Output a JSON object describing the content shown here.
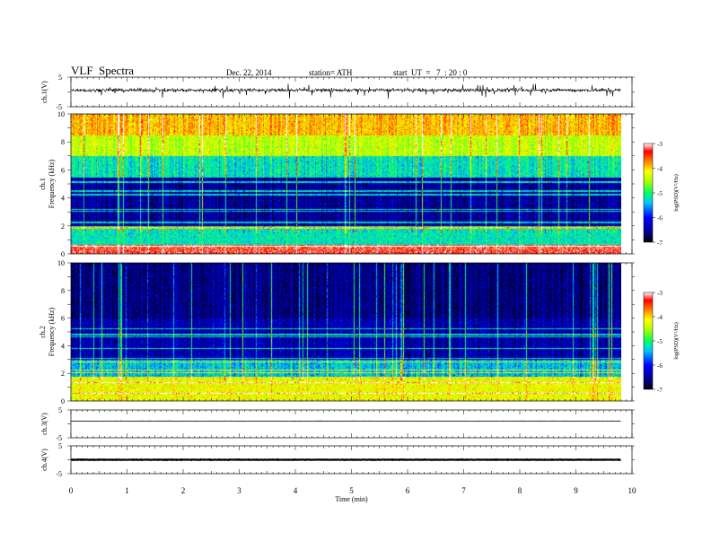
{
  "header": {
    "title": "VLF  Spectra",
    "date": "Dec. 22, 2014",
    "station": "station= ATH",
    "start": "start  UT  =   7  : 20 : 0"
  },
  "chart_data": [
    {
      "type": "line",
      "panel": "ch1-waveform",
      "ylabel": "ch.1(V)",
      "xlim": [
        0,
        10
      ],
      "ylim": [
        -5,
        5
      ],
      "y_ticks": [
        "5",
        "-5"
      ],
      "series": [
        {
          "mean": 0.6,
          "noise_amplitude": 1.0,
          "spike_amplitude": 2.5
        }
      ]
    },
    {
      "type": "heatmap",
      "panel": "ch1-spectrogram",
      "ylabel": "Frequency  (kHz)",
      "channel_label": "ch.1",
      "xlim": [
        0,
        9.8
      ],
      "ylim": [
        0,
        10
      ],
      "y_ticks": [
        "0",
        "2",
        "4",
        "6",
        "8",
        "10"
      ],
      "colorbar": {
        "label": "log(PSD)(V²/Hz)",
        "range": [
          -7,
          -3
        ],
        "ticks": [
          "-3",
          "-4",
          "-5",
          "-6",
          "-7"
        ]
      },
      "bands": [
        {
          "f_min": 0.0,
          "f_max": 0.7,
          "log_psd": -3.3
        },
        {
          "f_min": 0.7,
          "f_max": 2.0,
          "log_psd": -5.2
        },
        {
          "f_min": 2.0,
          "f_max": 5.5,
          "log_psd": -6.5
        },
        {
          "f_min": 5.5,
          "f_max": 7.0,
          "log_psd": -5.2
        },
        {
          "f_min": 7.0,
          "f_max": 8.5,
          "log_psd": -4.4
        },
        {
          "f_min": 8.5,
          "f_max": 10.0,
          "log_psd": -3.9
        }
      ]
    },
    {
      "type": "heatmap",
      "panel": "ch2-spectrogram",
      "ylabel": "Frequency  (kHz)",
      "channel_label": "ch.2",
      "xlim": [
        0,
        9.8
      ],
      "ylim": [
        0,
        10
      ],
      "y_ticks": [
        "0",
        "2",
        "4",
        "6",
        "8",
        "10"
      ],
      "colorbar": {
        "label": "log(PSD)(V²/Hz)",
        "range": [
          -7,
          -3
        ],
        "ticks": [
          "-3",
          "-4",
          "-5",
          "-6",
          "-7"
        ]
      },
      "bands": [
        {
          "f_min": 0.0,
          "f_max": 1.8,
          "log_psd": -4.2
        },
        {
          "f_min": 1.8,
          "f_max": 3.0,
          "log_psd": -5.4
        },
        {
          "f_min": 3.0,
          "f_max": 6.0,
          "log_psd": -6.4
        },
        {
          "f_min": 6.0,
          "f_max": 10.0,
          "log_psd": -6.6
        }
      ]
    },
    {
      "type": "line",
      "panel": "ch3-waveform",
      "ylabel": "ch.3(V)",
      "xlim": [
        0,
        10
      ],
      "ylim": [
        -5,
        5
      ],
      "y_ticks": [
        "5",
        "-5"
      ],
      "series": [
        {
          "mean": 1.0,
          "noise_amplitude": 0.1
        }
      ]
    },
    {
      "type": "line",
      "panel": "ch4-waveform",
      "ylabel": "ch.4(V)",
      "xlim": [
        0,
        10
      ],
      "ylim": [
        -5,
        5
      ],
      "y_ticks": [
        "5",
        "-5"
      ],
      "series": [
        {
          "mean": 0.0,
          "noise_amplitude": 0.15
        }
      ]
    }
  ],
  "x_axis": {
    "label": "Time  (min)",
    "ticks": [
      "0",
      "1",
      "2",
      "3",
      "4",
      "5",
      "6",
      "7",
      "8",
      "9",
      "10"
    ]
  }
}
